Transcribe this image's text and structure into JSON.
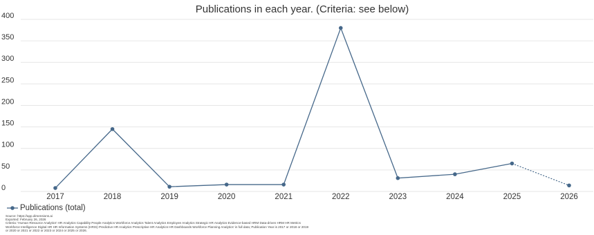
{
  "chart_data": {
    "type": "line",
    "title": "Publications in each year. (Criteria: see below)",
    "categories": [
      "2017",
      "2018",
      "2019",
      "2020",
      "2021",
      "2022",
      "2023",
      "2024",
      "2025",
      "2026"
    ],
    "series": [
      {
        "name": "Publications (total)",
        "color": "#46688a",
        "values": [
          8,
          145,
          11,
          16,
          16,
          380,
          31,
          40,
          65,
          14
        ]
      }
    ],
    "ylim": [
      0,
      400
    ],
    "yticks": [
      0,
      50,
      100,
      150,
      200,
      250,
      300,
      350,
      400
    ],
    "grid": true,
    "last_point_dotted": true,
    "legend": "bottom-left",
    "source": "Source: https://app.dimensions.ai",
    "exported": "Exported: February 26, 2026",
    "criteria": "Criteria: 'Human Resource Analytics' HR Analytics Capability People Analytics Workforce Analytics Talent Analytics Employee Analytics Strategic HR Analytics Evidence-based HRM Data-driven HRM HR Metrics Workforce Intelligence Digital HR HR Information Systems (HRIS) Predictive HR Analytics Prescriptive HR Analytics HR Dashboards Workforce Planning Analytics' in full data; Publication Year is 2017 or 2018 or 2019 or 2020 or 2021 or 2022 or 2023 or 2024 or 2025 or 2026."
  }
}
